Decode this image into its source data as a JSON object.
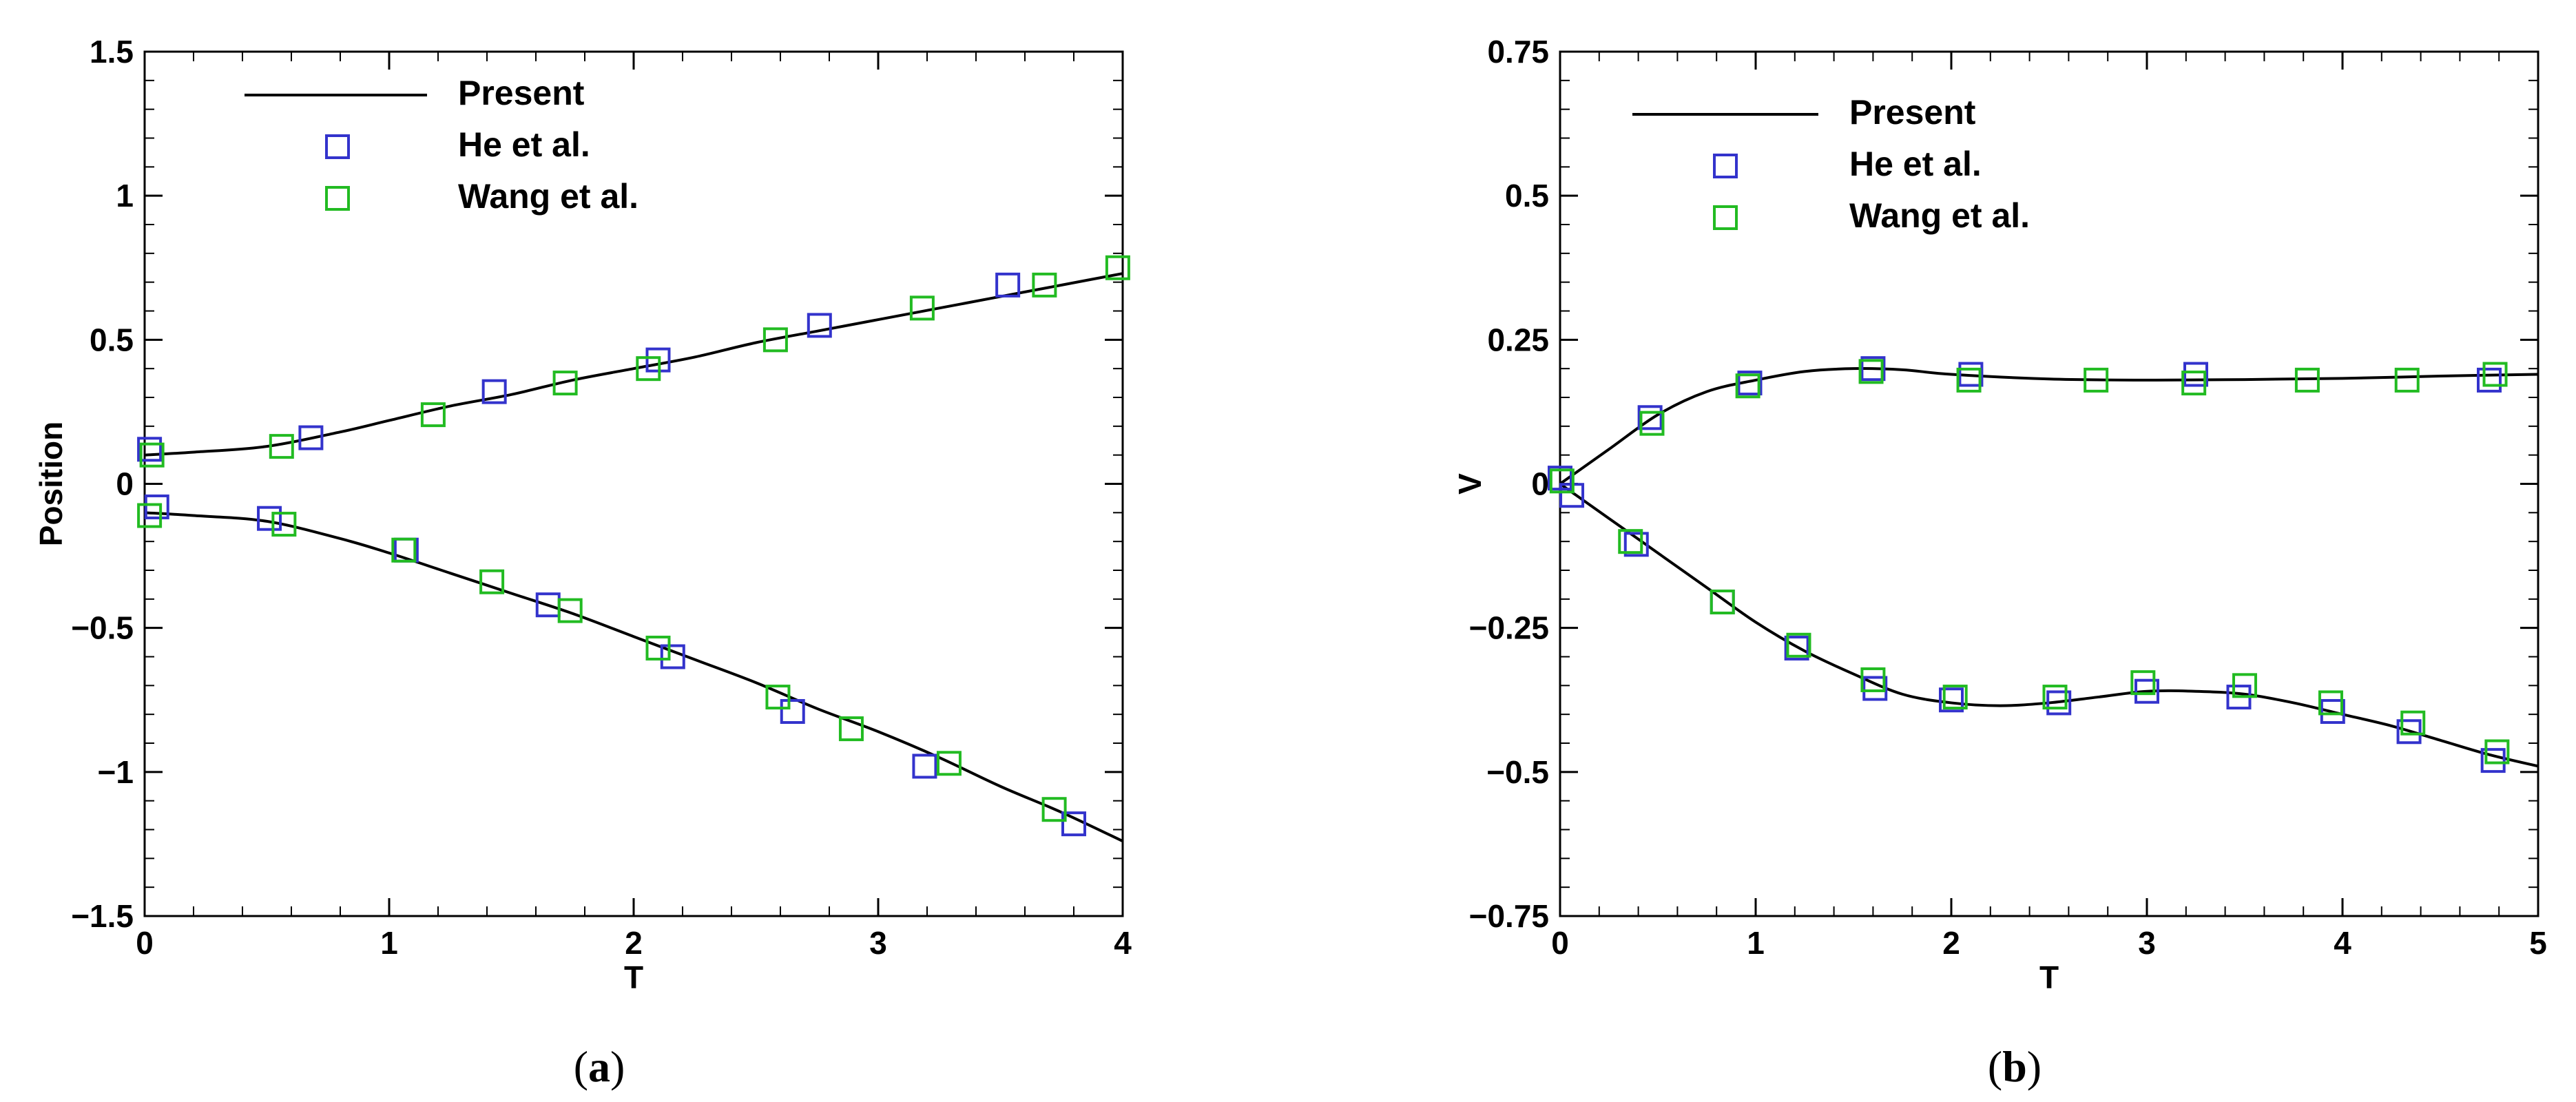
{
  "panels": [
    {
      "caption": {
        "open": "(",
        "letter": "a",
        "close": ")"
      },
      "chart_data": {
        "type": "line",
        "xlabel": "T",
        "ylabel": "Position",
        "xlim": [
          0,
          4
        ],
        "ylim": [
          -1.5,
          1.5
        ],
        "xticks": [
          0,
          1,
          2,
          3,
          4
        ],
        "xtick_labels": [
          "0",
          "1",
          "2",
          "3",
          "4"
        ],
        "yticks": [
          -1.5,
          -1,
          -0.5,
          0,
          0.5,
          1,
          1.5
        ],
        "ytick_labels": [
          "−1.5",
          "−1",
          "−0.5",
          "0",
          "0.5",
          "1",
          "1.5"
        ],
        "legend_position": "top-left",
        "series": [
          {
            "name": "Present",
            "style": "line",
            "color": "#000000",
            "curves": [
              {
                "x": [
                  0,
                  0.2,
                  0.5,
                  0.8,
                  1.0,
                  1.25,
                  1.5,
                  1.75,
                  2.0,
                  2.25,
                  2.5,
                  2.75,
                  3.0,
                  3.25,
                  3.5,
                  3.75,
                  4.0
                ],
                "y": [
                  0.1,
                  0.11,
                  0.13,
                  0.18,
                  0.22,
                  0.27,
                  0.31,
                  0.36,
                  0.4,
                  0.44,
                  0.49,
                  0.53,
                  0.57,
                  0.61,
                  0.65,
                  0.69,
                  0.73
                ]
              },
              {
                "x": [
                  0,
                  0.2,
                  0.5,
                  0.8,
                  1.0,
                  1.25,
                  1.5,
                  1.75,
                  2.0,
                  2.25,
                  2.5,
                  2.75,
                  3.0,
                  3.25,
                  3.5,
                  3.75,
                  4.0
                ],
                "y": [
                  -0.1,
                  -0.11,
                  -0.13,
                  -0.19,
                  -0.24,
                  -0.31,
                  -0.38,
                  -0.45,
                  -0.53,
                  -0.61,
                  -0.69,
                  -0.78,
                  -0.86,
                  -0.95,
                  -1.05,
                  -1.14,
                  -1.24
                ]
              }
            ]
          },
          {
            "name": "He et al.",
            "style": "square",
            "color": "#3333cc",
            "x": [
              0.02,
              0.68,
              1.43,
              2.1,
              2.76,
              3.53,
              0.05,
              0.51,
              1.07,
              1.65,
              2.16,
              2.65,
              3.19,
              3.8
            ],
            "y": [
              0.12,
              0.16,
              0.32,
              0.43,
              0.55,
              0.69,
              -0.08,
              -0.12,
              -0.23,
              -0.42,
              -0.6,
              -0.79,
              -0.98,
              -1.18
            ]
          },
          {
            "name": "Wang et al.",
            "style": "square",
            "color": "#22bb22",
            "x": [
              0.03,
              0.56,
              1.18,
              1.72,
              2.06,
              2.58,
              3.18,
              3.68,
              3.98,
              0.02,
              0.57,
              1.06,
              1.42,
              1.74,
              2.1,
              2.59,
              2.89,
              3.29,
              3.72
            ],
            "y": [
              0.1,
              0.13,
              0.24,
              0.35,
              0.4,
              0.5,
              0.61,
              0.69,
              0.75,
              -0.11,
              -0.14,
              -0.23,
              -0.34,
              -0.44,
              -0.57,
              -0.74,
              -0.85,
              -0.97,
              -1.13
            ]
          }
        ]
      }
    },
    {
      "caption": {
        "open": "(",
        "letter": "b",
        "close": ")"
      },
      "chart_data": {
        "type": "line",
        "xlabel": "T",
        "ylabel": "V",
        "xlim": [
          0,
          5
        ],
        "ylim": [
          -0.75,
          0.75
        ],
        "xticks": [
          0,
          1,
          2,
          3,
          4,
          5
        ],
        "xtick_labels": [
          "0",
          "1",
          "2",
          "3",
          "4",
          "5"
        ],
        "yticks": [
          -0.75,
          -0.5,
          -0.25,
          0,
          0.25,
          0.5,
          0.75
        ],
        "ytick_labels": [
          "−0.75",
          "−0.5",
          "−0.25",
          "0",
          "0.25",
          "0.5",
          "0.75"
        ],
        "legend_position": "top-left",
        "series": [
          {
            "name": "Present",
            "style": "line",
            "color": "#000000",
            "curves": [
              {
                "x": [
                  0,
                  0.25,
                  0.5,
                  0.75,
                  1.0,
                  1.25,
                  1.5,
                  1.75,
                  2.0,
                  2.5,
                  3.0,
                  3.5,
                  4.0,
                  4.5,
                  5.0
                ],
                "y": [
                  0.0,
                  0.06,
                  0.12,
                  0.16,
                  0.18,
                  0.195,
                  0.2,
                  0.198,
                  0.19,
                  0.182,
                  0.18,
                  0.181,
                  0.183,
                  0.187,
                  0.19
                ]
              },
              {
                "x": [
                  0,
                  0.25,
                  0.5,
                  0.75,
                  1.0,
                  1.25,
                  1.5,
                  1.75,
                  2.0,
                  2.25,
                  2.5,
                  2.75,
                  3.0,
                  3.25,
                  3.5,
                  3.75,
                  4.0,
                  4.25,
                  4.5,
                  4.75,
                  5.0
                ],
                "y": [
                  0.0,
                  -0.06,
                  -0.12,
                  -0.18,
                  -0.24,
                  -0.29,
                  -0.33,
                  -0.365,
                  -0.38,
                  -0.385,
                  -0.38,
                  -0.37,
                  -0.36,
                  -0.36,
                  -0.365,
                  -0.38,
                  -0.4,
                  -0.42,
                  -0.445,
                  -0.47,
                  -0.49
                ]
              }
            ]
          },
          {
            "name": "He et al.",
            "style": "square",
            "color": "#3333cc",
            "x": [
              0.0,
              0.46,
              0.97,
              1.6,
              2.1,
              3.25,
              4.75,
              0.06,
              0.39,
              0.83,
              1.21,
              1.61,
              2.0,
              2.55,
              3.0,
              3.47,
              3.95,
              4.34,
              4.77
            ],
            "y": [
              0.01,
              0.115,
              0.175,
              0.2,
              0.19,
              0.19,
              0.18,
              -0.02,
              -0.105,
              -0.205,
              -0.285,
              -0.355,
              -0.375,
              -0.38,
              -0.36,
              -0.37,
              -0.395,
              -0.43,
              -0.48
            ]
          },
          {
            "name": "Wang et al.",
            "style": "square",
            "color": "#22bb22",
            "x": [
              0.01,
              0.47,
              0.96,
              1.59,
              2.09,
              2.74,
              3.24,
              3.82,
              4.33,
              4.78,
              0.36,
              0.83,
              1.22,
              1.6,
              2.02,
              2.53,
              2.98,
              3.5,
              3.94,
              4.36,
              4.79
            ],
            "y": [
              0.005,
              0.105,
              0.17,
              0.195,
              0.18,
              0.18,
              0.175,
              0.18,
              0.18,
              0.19,
              -0.1,
              -0.205,
              -0.28,
              -0.34,
              -0.37,
              -0.37,
              -0.345,
              -0.35,
              -0.38,
              -0.415,
              -0.465
            ]
          }
        ]
      }
    }
  ]
}
